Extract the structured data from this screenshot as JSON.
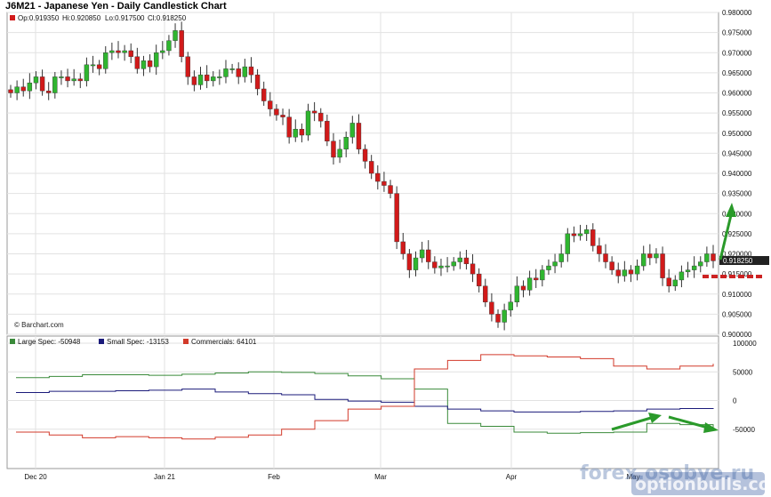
{
  "title": "J6M21 - Japanese Yen - Daily Candlestick Chart",
  "colors": {
    "up": "#2fb52f",
    "down": "#d11a1a",
    "grid": "#e2e2e2",
    "frame": "#999999",
    "arrow": "#2a9a2a",
    "dashed": "#cc2222"
  },
  "chart_data": [
    {
      "type": "candlestick",
      "ohlc_label": {
        "open": "Op:0.919350",
        "high": "Hi:0.920850",
        "low": "Lo:0.917500",
        "close": "Cl:0.918250"
      },
      "price_axis": {
        "ticks": [
          "0.980000",
          "0.975000",
          "0.970000",
          "0.965000",
          "0.960000",
          "0.955000",
          "0.950000",
          "0.945000",
          "0.940000",
          "0.935000",
          "0.930000",
          "0.925000",
          "0.920000",
          "0.915000",
          "0.910000",
          "0.905000",
          "0.900000"
        ],
        "ylim": [
          0.9,
          0.98
        ]
      },
      "last_price_label": "0.918250",
      "last_price": 0.91825,
      "x_ticks": [
        "Dec 20",
        "Jan 21",
        "Feb",
        "Mar",
        "Apr",
        "May"
      ],
      "closes": [
        0.96,
        0.9615,
        0.9605,
        0.9625,
        0.964,
        0.9605,
        0.96,
        0.964,
        0.964,
        0.963,
        0.9635,
        0.963,
        0.967,
        0.967,
        0.966,
        0.97,
        0.9705,
        0.97,
        0.9705,
        0.969,
        0.966,
        0.968,
        0.9665,
        0.97,
        0.9705,
        0.973,
        0.9755,
        0.969,
        0.964,
        0.962,
        0.9645,
        0.963,
        0.964,
        0.964,
        0.966,
        0.966,
        0.964,
        0.9665,
        0.9645,
        0.961,
        0.958,
        0.956,
        0.9545,
        0.954,
        0.949,
        0.951,
        0.9495,
        0.9555,
        0.955,
        0.953,
        0.948,
        0.944,
        0.946,
        0.949,
        0.9525,
        0.946,
        0.943,
        0.94,
        0.938,
        0.937,
        0.935,
        0.923,
        0.92,
        0.916,
        0.919,
        0.921,
        0.918,
        0.9165,
        0.917,
        0.917,
        0.918,
        0.919,
        0.9175,
        0.915,
        0.912,
        0.908,
        0.905,
        0.903,
        0.906,
        0.908,
        0.912,
        0.911,
        0.914,
        0.9135,
        0.916,
        0.917,
        0.918,
        0.92,
        0.925,
        0.9245,
        0.925,
        0.926,
        0.922,
        0.92,
        0.918,
        0.916,
        0.9145,
        0.916,
        0.915,
        0.917,
        0.92,
        0.919,
        0.92,
        0.914,
        0.912,
        0.9135,
        0.9155,
        0.916,
        0.917,
        0.918,
        0.92,
        0.91825
      ]
    },
    {
      "type": "line",
      "title": "",
      "yaxis_ticks": [
        "100000",
        "50000",
        "0",
        "-50000"
      ],
      "ylim": [
        -100000,
        100000
      ],
      "series": [
        {
          "name": "Large Spec",
          "label": "Large Spec: -50948",
          "color": "#3a8a3a",
          "values": [
            40000,
            42000,
            45000,
            45000,
            44000,
            46000,
            48000,
            50000,
            49000,
            47000,
            43000,
            38000,
            20000,
            -40000,
            -45000,
            -55000,
            -57000,
            -56000,
            -55000,
            -40000,
            -42000,
            -50948
          ]
        },
        {
          "name": "Small Spec",
          "label": "Small Spec: -13153",
          "color": "#1a1a7a",
          "values": [
            14000,
            16000,
            16000,
            17000,
            18000,
            20000,
            15000,
            12000,
            10000,
            2000,
            -1000,
            -3000,
            -10000,
            -15000,
            -18000,
            -20000,
            -20000,
            -19000,
            -18000,
            -15000,
            -14000,
            -13153
          ]
        },
        {
          "name": "Commercials",
          "label": "Commercials: 64101",
          "color": "#d23a2a",
          "values": [
            -55000,
            -60000,
            -65000,
            -63000,
            -65000,
            -67000,
            -64000,
            -60000,
            -50000,
            -35000,
            -15000,
            -10000,
            55000,
            70000,
            80000,
            78000,
            76000,
            73000,
            60000,
            55000,
            60000,
            64101
          ]
        }
      ]
    }
  ],
  "copyright": "© Barchart.com",
  "watermark": {
    "top": "forex.osobye.ru",
    "bottom": "optionbulls.com"
  }
}
